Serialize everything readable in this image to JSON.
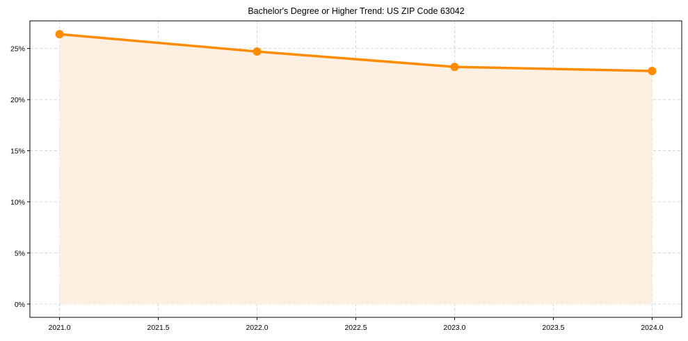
{
  "chart_data": {
    "type": "area",
    "title": "Bachelor's Degree or Higher Trend: US ZIP Code 63042",
    "xlabel": "",
    "ylabel": "",
    "x": [
      2021,
      2022,
      2023,
      2024
    ],
    "series": [
      {
        "name": "Bachelor's Degree or Higher",
        "values": [
          26.4,
          24.7,
          23.2,
          22.8
        ],
        "unit": "%"
      }
    ],
    "xlim": [
      2020.85,
      2024.15
    ],
    "ylim": [
      -1.3,
      27.7
    ],
    "x_ticks": [
      "2021.0",
      "2021.5",
      "2022.0",
      "2022.5",
      "2023.0",
      "2023.5",
      "2024.0"
    ],
    "y_ticks": [
      "0%",
      "5%",
      "10%",
      "15%",
      "20%",
      "25%"
    ],
    "grid": true,
    "legend": null,
    "colors": {
      "line": "#FF8C00",
      "fill": "#FDF0E3",
      "grid": "#CCCCCC",
      "axis": "#000000"
    }
  }
}
